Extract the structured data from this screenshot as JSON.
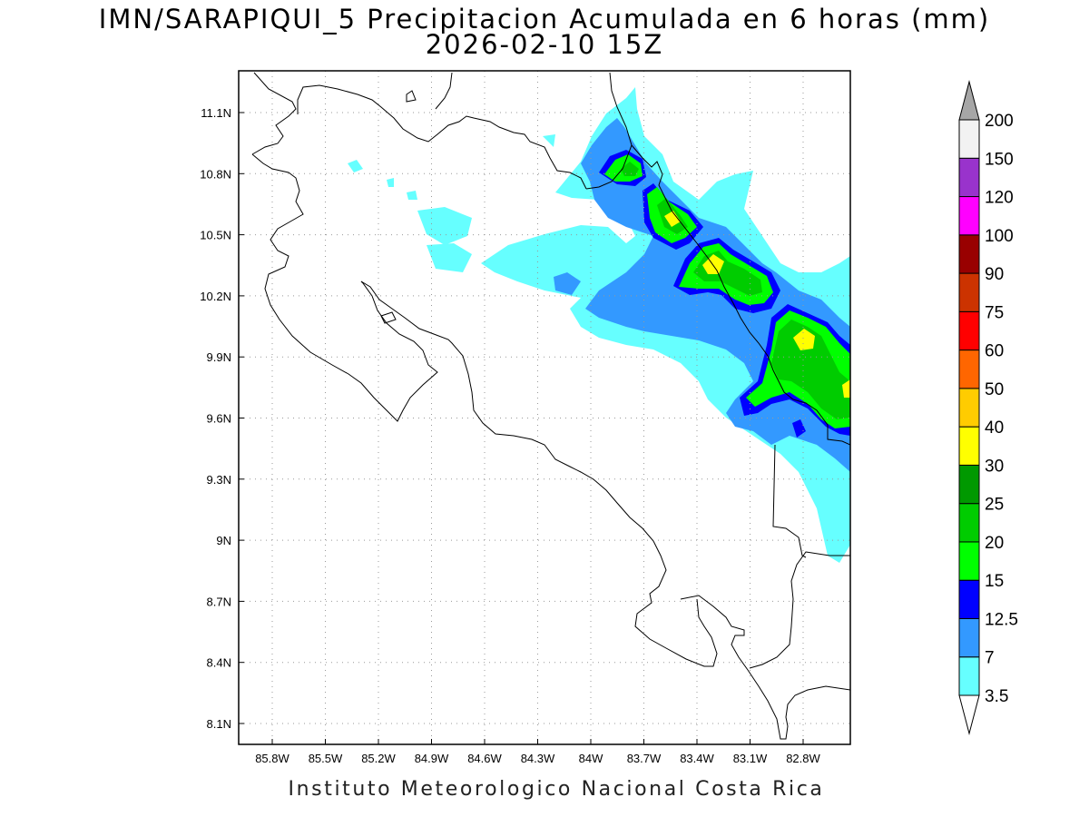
{
  "title": {
    "line1": "IMN/SARAPIQUI_5 Precipitacion Acumulada en 6 horas (mm)",
    "line2": "2026-02-10 15Z"
  },
  "map": {
    "lon_range": [
      -86.0,
      -82.5
    ],
    "lat_range": [
      8.0,
      11.3
    ],
    "x_ticks": [
      "85.8W",
      "85.5W",
      "85.2W",
      "84.9W",
      "84.6W",
      "84.3W",
      "84W",
      "83.7W",
      "83.4W",
      "83.1W",
      "82.8W"
    ],
    "y_ticks": [
      "11.1N",
      "10.8N",
      "10.5N",
      "10.2N",
      "9.9N",
      "9.6N",
      "9.3N",
      "9N",
      "8.7N",
      "8.4N",
      "8.1N"
    ],
    "grid": true
  },
  "colorbar": {
    "levels": [
      "3.5",
      "7",
      "12.5",
      "15",
      "20",
      "25",
      "30",
      "40",
      "50",
      "60",
      "75",
      "90",
      "100",
      "120",
      "150",
      "200"
    ],
    "colors": [
      "#66ffff",
      "#3399ff",
      "#0000ff",
      "#00ff00",
      "#00cc00",
      "#009900",
      "#ffff00",
      "#ffcc00",
      "#ff6600",
      "#ff0000",
      "#cc3300",
      "#990000",
      "#ff00ff",
      "#9933cc",
      "#f2f2f2"
    ],
    "over_color": "#a6a6a6",
    "under_color": "#ffffff"
  },
  "footer": "Instituto Meteorologico Nacional Costa Rica"
}
